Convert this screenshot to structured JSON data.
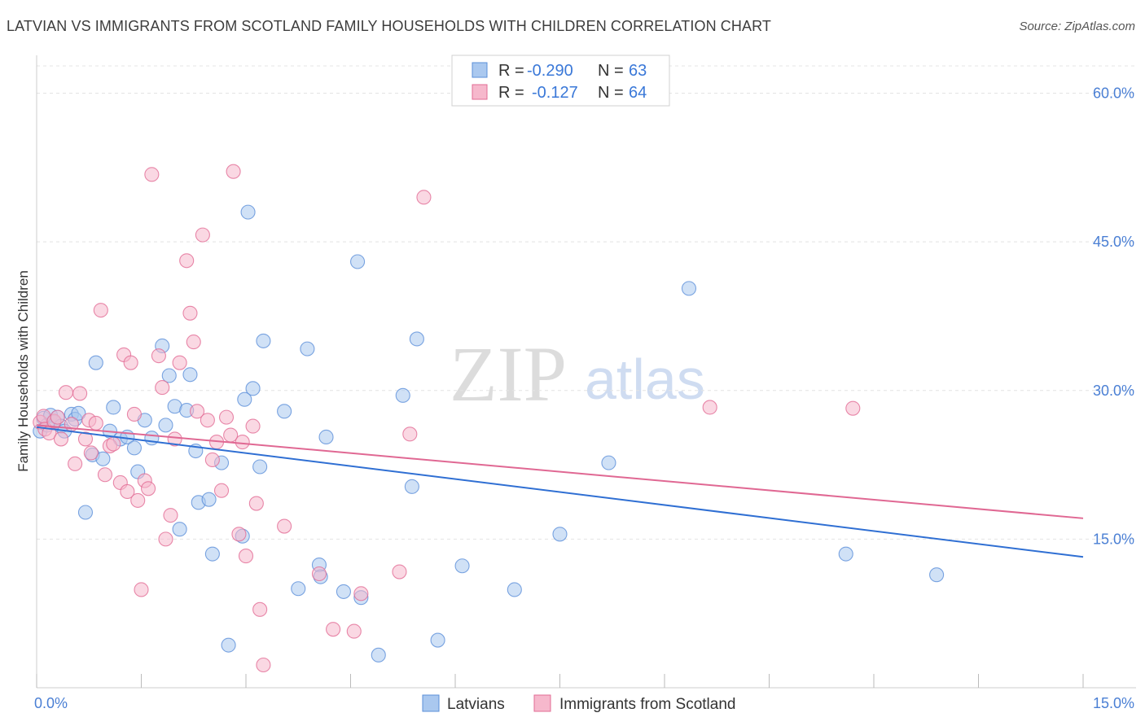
{
  "title": "LATVIAN VS IMMIGRANTS FROM SCOTLAND FAMILY HOUSEHOLDS WITH CHILDREN CORRELATION CHART",
  "source": "Source: ZipAtlas.com",
  "watermark": {
    "zip": "ZIP",
    "atlas": "atlas"
  },
  "legend_top": [
    {
      "r_label": "R =",
      "r_value": "-0.290",
      "n_label": "N =",
      "n_value": "63"
    },
    {
      "r_label": "R =",
      "r_value": "-0.127",
      "n_label": "N =",
      "n_value": "64"
    }
  ],
  "chart_data": {
    "type": "scatter",
    "title": "LATVIAN VS IMMIGRANTS FROM SCOTLAND FAMILY HOUSEHOLDS WITH CHILDREN CORRELATION CHART",
    "xlabel": "",
    "ylabel": "Family Households with Children",
    "xlim": [
      0,
      15
    ],
    "ylim": [
      0,
      63
    ],
    "x_tick_labels": [
      "0.0%",
      "15.0%"
    ],
    "y_ticks": [
      15,
      30,
      45,
      60
    ],
    "y_tick_labels": [
      "15.0%",
      "30.0%",
      "45.0%",
      "60.0%"
    ],
    "grid": true,
    "legend_position": "bottom",
    "series": [
      {
        "name": "Latvians",
        "color": "#5b8fd9",
        "fill": "#aac8ef",
        "r": -0.29,
        "n": 63,
        "trend": [
          [
            0,
            26.3
          ],
          [
            15,
            13.2
          ]
        ],
        "points": [
          [
            0.05,
            25.9
          ],
          [
            0.1,
            27.2
          ],
          [
            0.15,
            26.5
          ],
          [
            0.2,
            27.5
          ],
          [
            0.25,
            26.8
          ],
          [
            0.3,
            27.3
          ],
          [
            0.35,
            26.4
          ],
          [
            0.4,
            25.9
          ],
          [
            0.5,
            27.6
          ],
          [
            0.55,
            27.1
          ],
          [
            0.6,
            27.7
          ],
          [
            0.7,
            17.7
          ],
          [
            0.8,
            23.5
          ],
          [
            0.85,
            32.8
          ],
          [
            0.95,
            23.1
          ],
          [
            1.05,
            25.9
          ],
          [
            1.1,
            28.3
          ],
          [
            1.2,
            25.1
          ],
          [
            1.3,
            25.3
          ],
          [
            1.45,
            21.8
          ],
          [
            1.4,
            24.2
          ],
          [
            1.55,
            27.0
          ],
          [
            1.65,
            25.2
          ],
          [
            1.8,
            34.5
          ],
          [
            1.85,
            26.5
          ],
          [
            1.9,
            31.5
          ],
          [
            1.98,
            28.4
          ],
          [
            2.05,
            16.0
          ],
          [
            2.15,
            28.0
          ],
          [
            2.2,
            31.6
          ],
          [
            2.28,
            23.9
          ],
          [
            2.32,
            18.7
          ],
          [
            2.47,
            19.0
          ],
          [
            2.52,
            13.5
          ],
          [
            2.65,
            22.7
          ],
          [
            2.95,
            15.3
          ],
          [
            2.98,
            29.1
          ],
          [
            3.03,
            48.0
          ],
          [
            3.1,
            30.2
          ],
          [
            3.2,
            22.3
          ],
          [
            3.25,
            35.0
          ],
          [
            3.55,
            27.9
          ],
          [
            3.75,
            10.0
          ],
          [
            3.88,
            34.2
          ],
          [
            4.05,
            12.4
          ],
          [
            4.07,
            11.2
          ],
          [
            4.15,
            25.3
          ],
          [
            4.4,
            9.7
          ],
          [
            4.65,
            9.1
          ],
          [
            4.6,
            43.0
          ],
          [
            4.9,
            3.3
          ],
          [
            5.25,
            29.5
          ],
          [
            5.38,
            20.3
          ],
          [
            5.45,
            35.2
          ],
          [
            5.75,
            4.8
          ],
          [
            6.1,
            12.3
          ],
          [
            6.85,
            9.9
          ],
          [
            7.5,
            15.5
          ],
          [
            8.2,
            22.7
          ],
          [
            9.35,
            40.3
          ],
          [
            11.6,
            13.5
          ],
          [
            12.9,
            11.4
          ],
          [
            2.75,
            4.3
          ]
        ]
      },
      {
        "name": "Immigrants from Scotland",
        "color": "#e26c95",
        "fill": "#f6b8cc",
        "r": -0.127,
        "n": 64,
        "trend": [
          [
            0,
            26.5
          ],
          [
            15,
            17.1
          ]
        ],
        "points": [
          [
            0.05,
            26.8
          ],
          [
            0.1,
            27.4
          ],
          [
            0.12,
            26.1
          ],
          [
            0.18,
            25.7
          ],
          [
            0.25,
            26.9
          ],
          [
            0.3,
            27.3
          ],
          [
            0.35,
            25.1
          ],
          [
            0.42,
            29.8
          ],
          [
            0.5,
            26.6
          ],
          [
            0.55,
            22.6
          ],
          [
            0.62,
            29.7
          ],
          [
            0.7,
            25.1
          ],
          [
            0.75,
            27.0
          ],
          [
            0.78,
            23.7
          ],
          [
            0.85,
            26.7
          ],
          [
            0.92,
            38.1
          ],
          [
            0.98,
            21.5
          ],
          [
            1.05,
            24.4
          ],
          [
            1.1,
            24.6
          ],
          [
            1.2,
            20.7
          ],
          [
            1.25,
            33.6
          ],
          [
            1.3,
            19.8
          ],
          [
            1.35,
            32.8
          ],
          [
            1.4,
            27.6
          ],
          [
            1.45,
            18.9
          ],
          [
            1.5,
            9.9
          ],
          [
            1.55,
            20.9
          ],
          [
            1.6,
            20.1
          ],
          [
            1.65,
            51.8
          ],
          [
            1.75,
            33.5
          ],
          [
            1.8,
            30.3
          ],
          [
            1.85,
            15.0
          ],
          [
            1.92,
            17.4
          ],
          [
            1.98,
            25.1
          ],
          [
            2.05,
            32.8
          ],
          [
            2.15,
            43.1
          ],
          [
            2.2,
            37.8
          ],
          [
            2.25,
            34.9
          ],
          [
            2.3,
            27.9
          ],
          [
            2.38,
            45.7
          ],
          [
            2.45,
            27.0
          ],
          [
            2.52,
            23.0
          ],
          [
            2.58,
            24.8
          ],
          [
            2.65,
            19.9
          ],
          [
            2.72,
            27.3
          ],
          [
            2.78,
            25.5
          ],
          [
            2.82,
            52.1
          ],
          [
            2.9,
            15.5
          ],
          [
            2.95,
            24.8
          ],
          [
            3.0,
            13.3
          ],
          [
            3.1,
            26.4
          ],
          [
            3.15,
            18.6
          ],
          [
            3.2,
            7.9
          ],
          [
            3.25,
            2.3
          ],
          [
            3.55,
            16.3
          ],
          [
            4.05,
            11.5
          ],
          [
            4.25,
            5.9
          ],
          [
            4.55,
            5.7
          ],
          [
            4.65,
            9.5
          ],
          [
            5.2,
            11.7
          ],
          [
            5.35,
            25.6
          ],
          [
            5.55,
            49.5
          ],
          [
            9.65,
            28.3
          ],
          [
            11.7,
            28.2
          ]
        ]
      }
    ]
  },
  "bottom_legend": [
    "Latvians",
    "Immigrants from Scotland"
  ]
}
